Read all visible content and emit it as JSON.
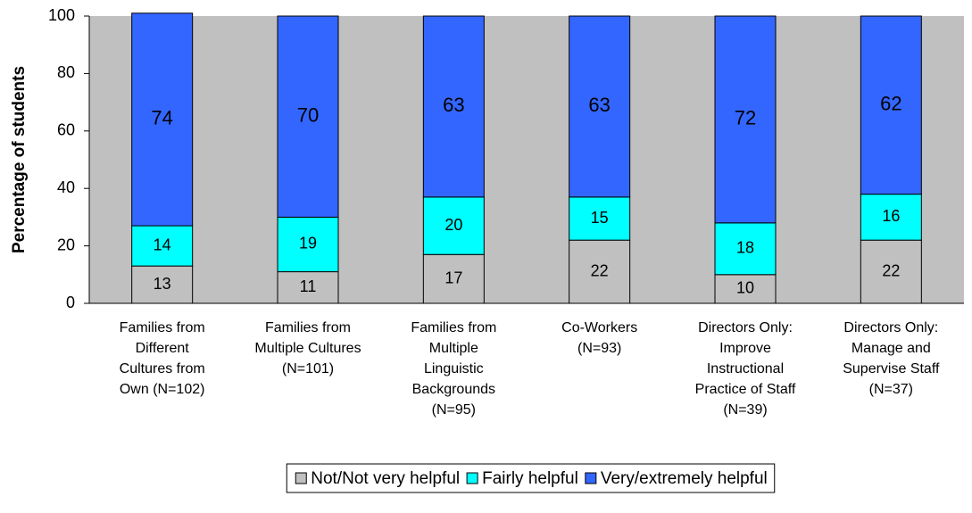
{
  "chart_data": {
    "type": "stacked_bar",
    "y_label": "Percentage of students",
    "categories": [
      "Families from\nDifferent\nCultures from\nOwn (N=102)",
      "Families from\nMultiple Cultures\n(N=101)",
      "Families from\nMultiple\nLinguistic\nBackgrounds\n(N=95)",
      "Co-Workers\n(N=93)",
      "Directors Only:\nImprove\nInstructional\nPractice of Staff\n(N=39)",
      "Directors Only:\nManage and\nSupervise Staff\n(N=37)"
    ],
    "series": [
      {
        "name": "Not/Not very helpful",
        "color": "#c0c0c0",
        "values": [
          13,
          11,
          17,
          22,
          10,
          22
        ]
      },
      {
        "name": "Fairly helpful",
        "color": "#00ffff",
        "values": [
          14,
          19,
          20,
          15,
          18,
          16
        ]
      },
      {
        "name": "Very/extremely helpful",
        "color": "#3366ff",
        "values": [
          74,
          70,
          63,
          63,
          72,
          62
        ]
      }
    ],
    "ylim": [
      0,
      100
    ],
    "yticks": [
      0,
      20,
      40,
      60,
      80,
      100
    ],
    "plot_background": "#c0c0c0",
    "legend": "bottom"
  }
}
